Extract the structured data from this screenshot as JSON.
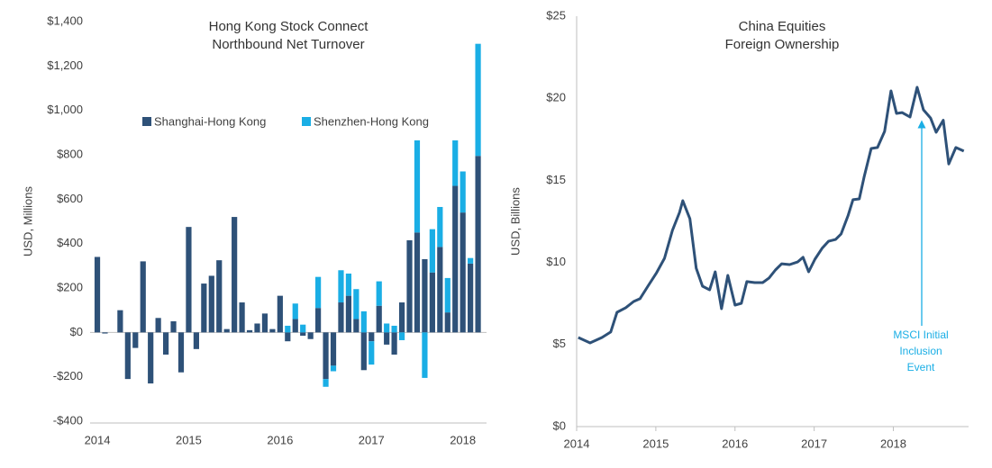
{
  "chart_data": [
    {
      "type": "bar",
      "stacked": true,
      "title": [
        "Hong Kong Stock Connect",
        "Northbound Net Turnover"
      ],
      "ylabel": "USD, Millions",
      "legend": "upper center",
      "categories": [
        "2014",
        null,
        null,
        null,
        null,
        null,
        null,
        null,
        null,
        null,
        null,
        null,
        "2015",
        null,
        null,
        null,
        null,
        null,
        null,
        null,
        null,
        null,
        null,
        null,
        "2016",
        null,
        null,
        null,
        null,
        null,
        null,
        null,
        null,
        null,
        null,
        null,
        "2017",
        null,
        null,
        null,
        null,
        null,
        null,
        null,
        null,
        null,
        null,
        null,
        "2018",
        null,
        null
      ],
      "series": [
        {
          "name": "Shanghai-Hong Kong",
          "color": "#2e5178",
          "values": [
            340,
            -5,
            0,
            100,
            -210,
            -70,
            320,
            -230,
            65,
            -100,
            50,
            -180,
            475,
            -75,
            220,
            255,
            325,
            15,
            520,
            135,
            10,
            40,
            85,
            15,
            165,
            -40,
            60,
            -15,
            -30,
            110,
            -210,
            -150,
            135,
            165,
            60,
            -170,
            -40,
            120,
            -55,
            -100,
            135,
            415,
            450,
            330,
            270,
            385,
            90,
            660,
            540,
            310,
            795
          ]
        },
        {
          "name": "Shenzhen-Hong Kong",
          "color": "#1aaee5",
          "values": [
            0,
            0,
            0,
            0,
            0,
            0,
            0,
            0,
            0,
            0,
            0,
            0,
            0,
            0,
            0,
            0,
            0,
            0,
            0,
            0,
            0,
            0,
            0,
            0,
            0,
            30,
            70,
            35,
            0,
            140,
            -35,
            -25,
            145,
            100,
            135,
            95,
            -105,
            110,
            40,
            30,
            -35,
            0,
            415,
            -205,
            195,
            180,
            155,
            205,
            185,
            25,
            505
          ]
        }
      ],
      "ylim": [
        -400,
        1400
      ],
      "yticks": [
        {
          "value": -400,
          "label": "-$400"
        },
        {
          "value": -200,
          "label": "-$200"
        },
        {
          "value": 0,
          "label": "$0"
        },
        {
          "value": 200,
          "label": "$200"
        },
        {
          "value": 400,
          "label": "$400"
        },
        {
          "value": 600,
          "label": "$600"
        },
        {
          "value": 800,
          "label": "$800"
        },
        {
          "value": 1000,
          "label": "$1,000"
        },
        {
          "value": 1200,
          "label": "$1,200"
        },
        {
          "value": 1400,
          "label": "$1,400"
        }
      ]
    },
    {
      "type": "line",
      "title": [
        "China Equities",
        "Foreign Ownership"
      ],
      "ylabel": "USD, Billions",
      "color": "#2e5178",
      "x": [
        2014.02,
        2014.17,
        2014.32,
        2014.43,
        2014.51,
        2014.62,
        2014.72,
        2014.8,
        2014.9,
        2015.01,
        2015.11,
        2015.21,
        2015.3,
        2015.34,
        2015.43,
        2015.51,
        2015.59,
        2015.68,
        2015.75,
        2015.83,
        2015.91,
        2016.0,
        2016.08,
        2016.15,
        2016.25,
        2016.35,
        2016.43,
        2016.51,
        2016.59,
        2016.69,
        2016.79,
        2016.86,
        2016.93,
        2017.01,
        2017.1,
        2017.18,
        2017.27,
        2017.34,
        2017.43,
        2017.49,
        2017.57,
        2017.63,
        2017.72,
        2017.8,
        2017.89,
        2017.97,
        2018.04,
        2018.11,
        2018.21,
        2018.3,
        2018.38,
        2018.47,
        2018.54,
        2018.63,
        2018.7,
        2018.79,
        2018.89
      ],
      "values": [
        5.43,
        5.1,
        5.43,
        5.76,
        6.96,
        7.24,
        7.62,
        7.79,
        8.55,
        9.38,
        10.25,
        11.95,
        13.05,
        13.76,
        12.66,
        9.65,
        8.55,
        8.33,
        9.43,
        7.18,
        9.21,
        7.4,
        7.51,
        8.83,
        8.77,
        8.77,
        9.05,
        9.54,
        9.92,
        9.87,
        10.03,
        10.31,
        9.43,
        10.2,
        10.86,
        11.29,
        11.4,
        11.73,
        12.88,
        13.82,
        13.87,
        15.19,
        16.94,
        17.0,
        17.98,
        20.45,
        19.08,
        19.13,
        18.86,
        20.67,
        19.3,
        18.8,
        17.93,
        18.66,
        16.0,
        17.0,
        16.78
      ],
      "xlim": [
        2014,
        2018.95
      ],
      "xticks": [
        2014,
        2015,
        2016,
        2017,
        2018
      ],
      "ylim": [
        0,
        25
      ],
      "yticks": [
        {
          "value": 0,
          "label": "$0"
        },
        {
          "value": 5,
          "label": "$5"
        },
        {
          "value": 10,
          "label": "$10"
        },
        {
          "value": 15,
          "label": "$15"
        },
        {
          "value": 20,
          "label": "$20"
        },
        {
          "value": 25,
          "label": "$25"
        }
      ],
      "annotation": {
        "text": [
          "MSCI Initial",
          "Inclusion",
          "Event"
        ],
        "color": "#1aaee5"
      }
    }
  ]
}
